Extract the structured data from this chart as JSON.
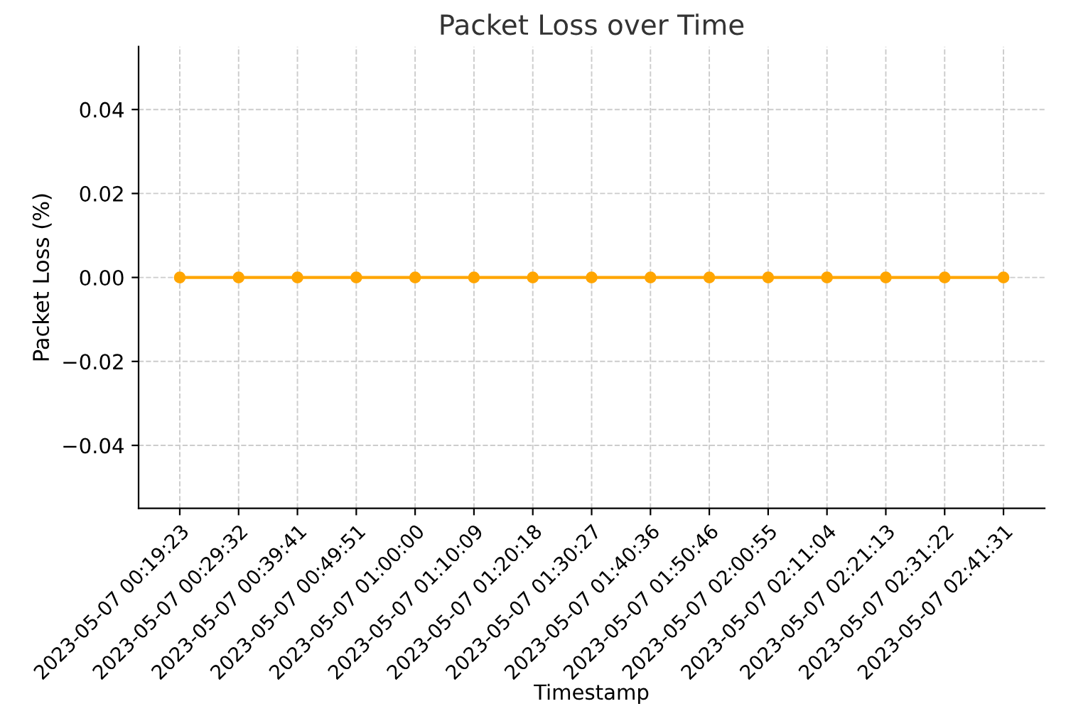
{
  "chart_data": {
    "type": "line",
    "title": "Packet Loss over Time",
    "xlabel": "Timestamp",
    "ylabel": "Packet Loss (%)",
    "categories": [
      "2023-05-07 00:19:23",
      "2023-05-07 00:29:32",
      "2023-05-07 00:39:41",
      "2023-05-07 00:49:51",
      "2023-05-07 01:00:00",
      "2023-05-07 01:10:09",
      "2023-05-07 01:20:18",
      "2023-05-07 01:30:27",
      "2023-05-07 01:40:36",
      "2023-05-07 01:50:46",
      "2023-05-07 02:00:55",
      "2023-05-07 02:11:04",
      "2023-05-07 02:21:13",
      "2023-05-07 02:31:22",
      "2023-05-07 02:41:31"
    ],
    "series": [
      {
        "color": "#ffa500",
        "values": [
          0,
          0,
          0,
          0,
          0,
          0,
          0,
          0,
          0,
          0,
          0,
          0,
          0,
          0,
          0
        ]
      }
    ],
    "ylim": [
      -0.055,
      0.055
    ],
    "yticks": [
      {
        "value": -0.04,
        "label": "−0.04"
      },
      {
        "value": -0.02,
        "label": "−0.02"
      },
      {
        "value": 0,
        "label": "0.00"
      },
      0.02,
      0.04
    ],
    "grid": true,
    "marker": "circle",
    "line_style": "solid"
  }
}
